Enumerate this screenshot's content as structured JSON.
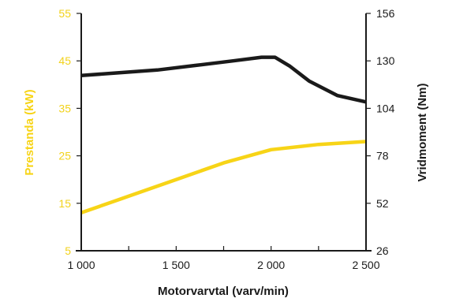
{
  "chart_data": {
    "type": "line",
    "xlabel": "Motorvarvtal (varv/min)",
    "ylabel_left": "Prestanda (kW)",
    "ylabel_right": "Vridmoment (Nm)",
    "x_ticks": [
      "1 000",
      "1 500",
      "2 000",
      "2 500"
    ],
    "y_left_ticks": [
      "5",
      "15",
      "25",
      "35",
      "45",
      "55"
    ],
    "y_right_ticks": [
      "26",
      "52",
      "78",
      "104",
      "130",
      "156"
    ],
    "xlim": [
      1000,
      2500
    ],
    "ylim_left": [
      5,
      55
    ],
    "ylim_right": [
      26,
      156
    ],
    "grid": false,
    "series": [
      {
        "axis": "left",
        "color": "#f7d417",
        "points": [
          [
            1000,
            13
          ],
          [
            1250,
            16.5
          ],
          [
            1500,
            20
          ],
          [
            1750,
            23.5
          ],
          [
            2000,
            26.3
          ],
          [
            2250,
            27.4
          ],
          [
            2500,
            28
          ]
        ]
      },
      {
        "axis": "right",
        "color": "#1a1a1a",
        "points": [
          [
            1000,
            122
          ],
          [
            1200,
            123.5
          ],
          [
            1400,
            125
          ],
          [
            1600,
            127.5
          ],
          [
            1800,
            130
          ],
          [
            1950,
            132
          ],
          [
            2020,
            132
          ],
          [
            2100,
            127
          ],
          [
            2200,
            119
          ],
          [
            2350,
            111
          ],
          [
            2500,
            107.5
          ]
        ]
      }
    ]
  }
}
